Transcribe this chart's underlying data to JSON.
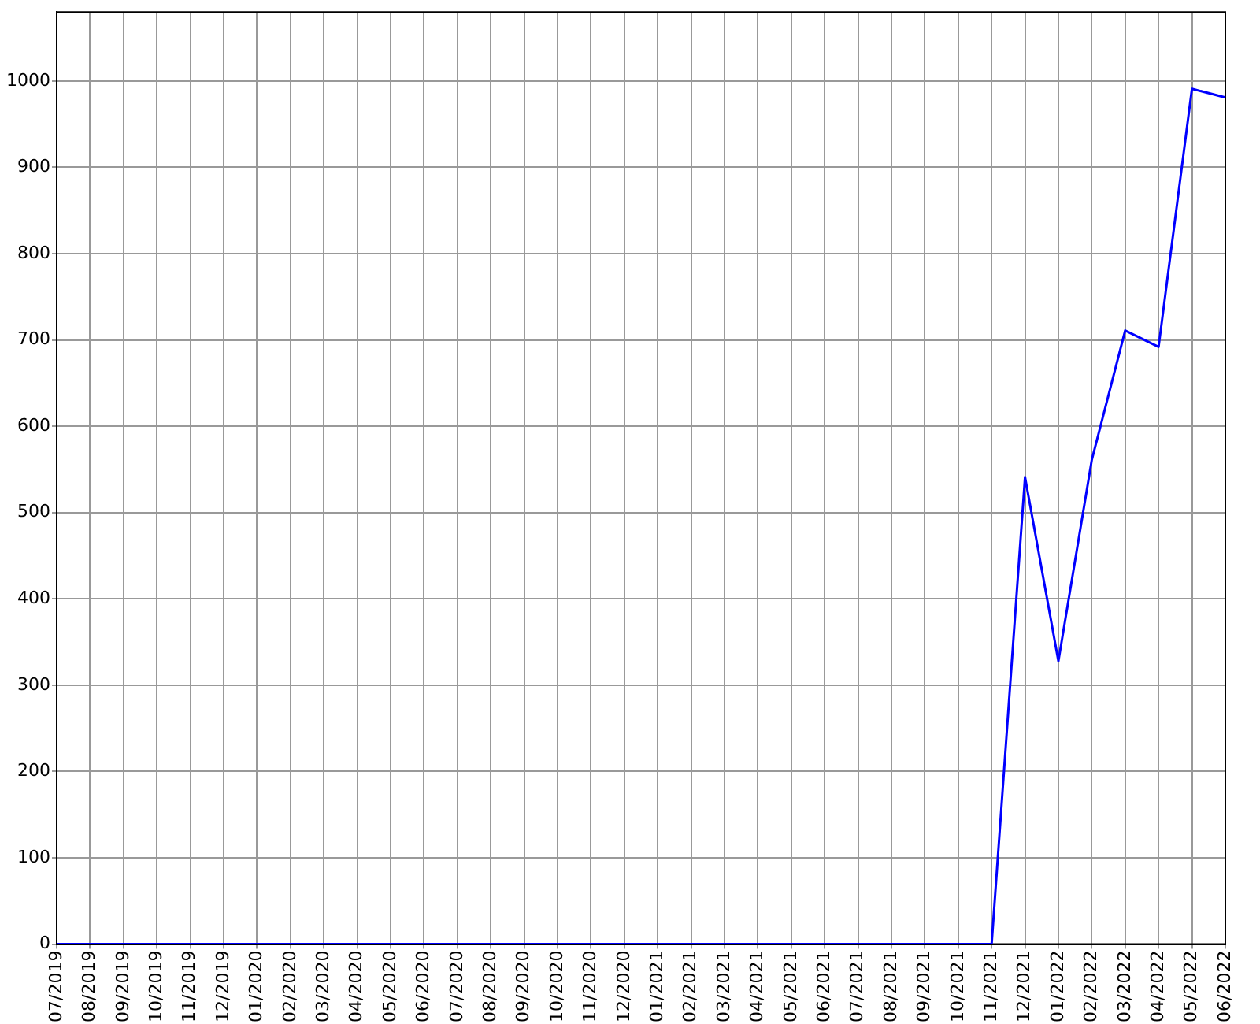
{
  "chart_data": {
    "type": "line",
    "categories": [
      "07/2019",
      "08/2019",
      "09/2019",
      "10/2019",
      "11/2019",
      "12/2019",
      "01/2020",
      "02/2020",
      "03/2020",
      "04/2020",
      "05/2020",
      "06/2020",
      "07/2020",
      "08/2020",
      "09/2020",
      "10/2020",
      "11/2020",
      "12/2020",
      "01/2021",
      "02/2021",
      "03/2021",
      "04/2021",
      "05/2021",
      "06/2021",
      "07/2021",
      "08/2021",
      "09/2021",
      "10/2021",
      "11/2021",
      "12/2021",
      "01/2022",
      "02/2022",
      "03/2022",
      "04/2022",
      "05/2022",
      "06/2022"
    ],
    "series": [
      {
        "color": "#0000ff",
        "values": [
          0,
          0,
          0,
          0,
          0,
          0,
          0,
          0,
          0,
          0,
          0,
          0,
          0,
          0,
          0,
          0,
          0,
          0,
          0,
          0,
          0,
          0,
          0,
          0,
          0,
          0,
          0,
          0,
          0,
          541,
          328,
          561,
          711,
          692,
          991,
          981
        ]
      }
    ],
    "ylim": [
      0,
      1080
    ],
    "yticks": [
      0,
      100,
      200,
      300,
      400,
      500,
      600,
      700,
      800,
      900,
      1000
    ],
    "grid": true,
    "legend": false,
    "marker": "none",
    "line_style": "solid"
  }
}
